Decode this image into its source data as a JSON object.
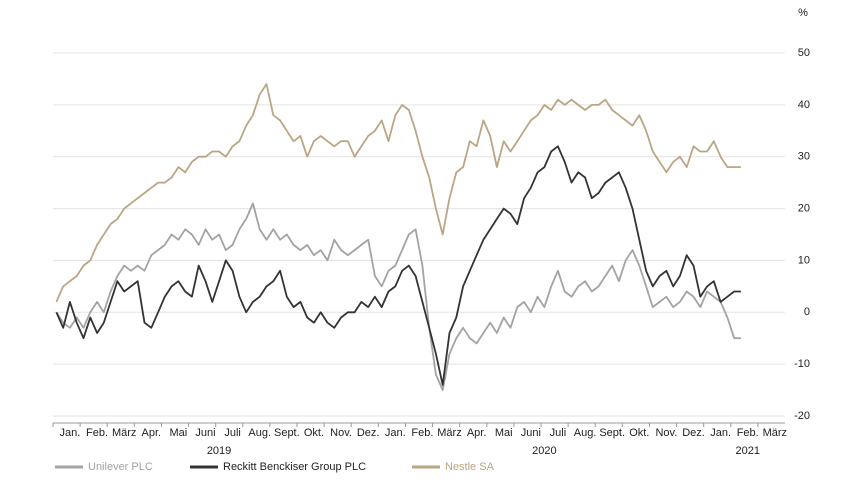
{
  "chart_data": {
    "type": "line",
    "y_unit": "%",
    "categories": [
      null,
      null,
      "Jan.",
      null,
      null,
      null,
      "Feb.",
      null,
      null,
      null,
      "März",
      null,
      null,
      null,
      "Apr.",
      null,
      null,
      null,
      "Mai",
      null,
      null,
      null,
      "Juni",
      null,
      null,
      null,
      "Juli",
      null,
      null,
      null,
      "Aug.",
      null,
      null,
      null,
      "Sept.",
      null,
      null,
      null,
      "Okt.",
      null,
      null,
      null,
      "Nov.",
      null,
      null,
      null,
      "Dez.",
      null,
      null,
      null,
      "Jan.",
      null,
      null,
      null,
      "Feb.",
      null,
      null,
      null,
      "März",
      null,
      null,
      null,
      "Apr.",
      null,
      null,
      null,
      "Mai",
      null,
      null,
      null,
      "Juni",
      null,
      null,
      null,
      "Juli",
      null,
      null,
      null,
      "Aug.",
      null,
      null,
      null,
      "Sept.",
      null,
      null,
      null,
      "Okt.",
      null,
      null,
      null,
      "Nov.",
      null,
      null,
      null,
      "Dez.",
      null,
      null,
      null,
      "Jan.",
      null,
      null,
      null,
      "Feb.",
      null,
      null,
      null,
      "März",
      null
    ],
    "years": [
      null,
      null,
      null,
      null,
      null,
      null,
      null,
      null,
      null,
      null,
      null,
      null,
      null,
      null,
      null,
      null,
      null,
      null,
      null,
      null,
      null,
      null,
      null,
      null,
      "2019",
      null,
      null,
      null,
      null,
      null,
      null,
      null,
      null,
      null,
      null,
      null,
      null,
      null,
      null,
      null,
      null,
      null,
      null,
      null,
      null,
      null,
      null,
      null,
      null,
      null,
      null,
      null,
      null,
      null,
      null,
      null,
      null,
      null,
      null,
      null,
      null,
      null,
      null,
      null,
      null,
      null,
      null,
      null,
      null,
      null,
      null,
      null,
      "2020",
      null,
      null,
      null,
      null,
      null,
      null,
      null,
      null,
      null,
      null,
      null,
      null,
      null,
      null,
      null,
      null,
      null,
      null,
      null,
      null,
      null,
      null,
      null,
      null,
      null,
      null,
      null,
      null,
      null,
      "2021",
      null,
      null,
      null,
      null,
      null
    ],
    "ylim": [
      -20,
      50
    ],
    "yticks": [
      -20,
      -10,
      0,
      10,
      20,
      30,
      40,
      50
    ],
    "grid": true,
    "series": [
      {
        "name": "Unilever PLC",
        "color": "#a3a3a3",
        "values": [
          0,
          -2,
          -3,
          -1,
          -3,
          0,
          2,
          0,
          4,
          7,
          9,
          8,
          9,
          8,
          11,
          12,
          13,
          15,
          14,
          16,
          15,
          13,
          16,
          14,
          15,
          12,
          13,
          16,
          18,
          21,
          16,
          14,
          16,
          14,
          15,
          13,
          12,
          13,
          11,
          12,
          10,
          14,
          12,
          11,
          12,
          13,
          14,
          7,
          5,
          8,
          9,
          12,
          15,
          16,
          9,
          -3,
          -12,
          -15,
          -8,
          -5,
          -3,
          -5,
          -6,
          -4,
          -2,
          -4,
          -1,
          -3,
          1,
          2,
          0,
          3,
          1,
          5,
          8,
          4,
          3,
          5,
          6,
          4,
          5,
          7,
          9,
          6,
          10,
          12,
          9,
          5,
          1,
          2,
          3,
          1,
          2,
          4,
          3,
          1,
          4,
          3,
          2,
          -1,
          -5,
          -5,
          null,
          null,
          null,
          null,
          null,
          null
        ]
      },
      {
        "name": "Reckitt Benckiser Group PLC",
        "color": "#333333",
        "values": [
          0,
          -3,
          2,
          -2,
          -5,
          -1,
          -4,
          -2,
          2,
          6,
          4,
          5,
          6,
          -2,
          -3,
          0,
          3,
          5,
          6,
          4,
          3,
          9,
          6,
          2,
          6,
          10,
          8,
          3,
          0,
          2,
          3,
          5,
          6,
          8,
          3,
          1,
          2,
          -1,
          -2,
          0,
          -2,
          -3,
          -1,
          0,
          0,
          2,
          1,
          3,
          1,
          4,
          5,
          8,
          9,
          7,
          2,
          -3,
          -8,
          -14,
          -4,
          -1,
          5,
          8,
          11,
          14,
          16,
          18,
          20,
          19,
          17,
          22,
          24,
          27,
          28,
          31,
          32,
          29,
          25,
          27,
          26,
          22,
          23,
          25,
          26,
          27,
          24,
          20,
          14,
          8,
          5,
          7,
          8,
          5,
          7,
          11,
          9,
          3,
          5,
          6,
          2,
          3,
          4,
          4,
          null,
          null,
          null,
          null,
          null,
          null
        ]
      },
      {
        "name": "Nestle SA",
        "color": "#bba584",
        "values": [
          2,
          5,
          6,
          7,
          9,
          10,
          13,
          15,
          17,
          18,
          20,
          21,
          22,
          23,
          24,
          25,
          25,
          26,
          28,
          27,
          29,
          30,
          30,
          31,
          31,
          30,
          32,
          33,
          36,
          38,
          42,
          44,
          38,
          37,
          35,
          33,
          34,
          30,
          33,
          34,
          33,
          32,
          33,
          33,
          30,
          32,
          34,
          35,
          37,
          33,
          38,
          40,
          39,
          35,
          30,
          26,
          20,
          15,
          22,
          27,
          28,
          33,
          32,
          37,
          34,
          28,
          33,
          31,
          33,
          35,
          37,
          38,
          40,
          39,
          41,
          40,
          41,
          40,
          39,
          40,
          40,
          41,
          39,
          38,
          37,
          36,
          38,
          35,
          31,
          29,
          27,
          29,
          30,
          28,
          32,
          31,
          31,
          33,
          30,
          28,
          28,
          28,
          null,
          null,
          null,
          null,
          null,
          null
        ]
      }
    ]
  }
}
